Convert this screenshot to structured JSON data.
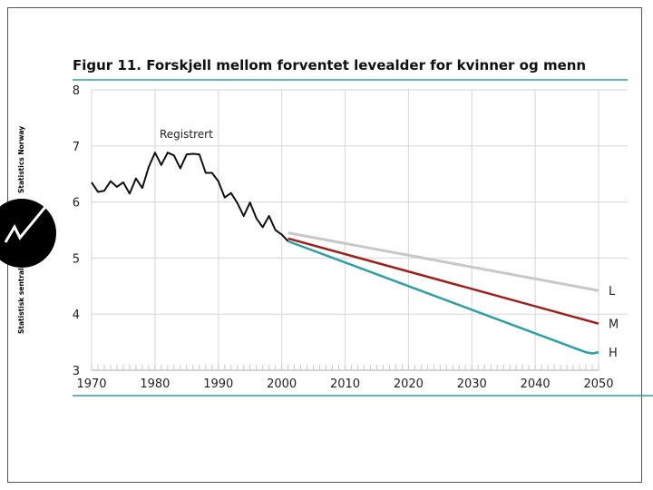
{
  "brand": {
    "name_en": "Statistics Norway",
    "name_no": "Statistisk sentralbyrå",
    "logo_icon": "ssb-logo-icon"
  },
  "colors": {
    "accent_teal": "#2aa0a0",
    "series_L": "#c8c8c8",
    "series_M": "#9e1f1a",
    "series_H": "#2aa0a0",
    "registered": "#111111",
    "grid": "#dcdcdc"
  },
  "chart_data": {
    "type": "line",
    "title": "Figur 11. Forskjell mellom forventet levealder for kvinner og menn",
    "xlabel": "",
    "ylabel": "",
    "xlim": [
      1970,
      2050
    ],
    "ylim": [
      3,
      8
    ],
    "xticks": [
      1970,
      1980,
      1990,
      2000,
      2010,
      2020,
      2030,
      2040,
      2050
    ],
    "yticks": [
      3,
      4,
      5,
      6,
      7,
      8
    ],
    "grid": true,
    "annotation": "Registrert",
    "series": [
      {
        "name": "Registrert",
        "x": [
          1970,
          1971,
          1972,
          1973,
          1974,
          1975,
          1976,
          1977,
          1978,
          1979,
          1980,
          1981,
          1982,
          1983,
          1984,
          1985,
          1986,
          1987,
          1988,
          1989,
          1990,
          1991,
          1992,
          1993,
          1994,
          1995,
          1996,
          1997,
          1998,
          1999,
          2000,
          2001
        ],
        "values": [
          6.35,
          6.18,
          6.2,
          6.37,
          6.27,
          6.35,
          6.15,
          6.42,
          6.25,
          6.62,
          6.88,
          6.66,
          6.88,
          6.83,
          6.6,
          6.85,
          6.86,
          6.85,
          6.52,
          6.52,
          6.37,
          6.08,
          6.16,
          5.98,
          5.75,
          5.99,
          5.71,
          5.55,
          5.75,
          5.5,
          5.42,
          5.3
        ]
      },
      {
        "name": "L",
        "x": [
          2001,
          2050
        ],
        "values": [
          5.45,
          4.42
        ]
      },
      {
        "name": "M",
        "x": [
          2001,
          2050
        ],
        "values": [
          5.35,
          3.83
        ]
      },
      {
        "name": "H",
        "x": [
          2001,
          2048,
          2049,
          2050
        ],
        "values": [
          5.3,
          3.32,
          3.3,
          3.32
        ]
      }
    ]
  }
}
